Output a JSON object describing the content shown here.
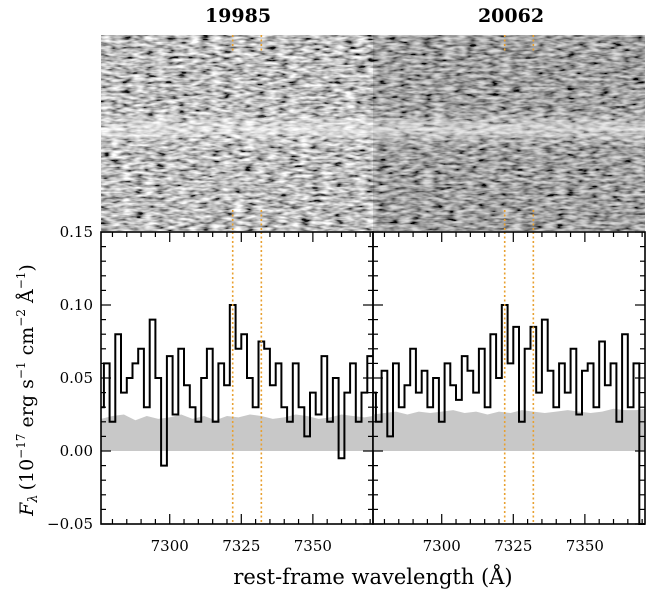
{
  "chart_data": [
    {
      "type": "line",
      "title": "19985",
      "xlabel": "rest-frame wavelength (Å)",
      "ylabel": "F_λ (10^-17 erg s^-1 cm^-2 Å^-1)",
      "ylabel_parts": {
        "f": "F",
        "lam": "λ",
        "open": "(10",
        "e1": "−17",
        "erg": " erg s",
        "e2": "−1",
        "cm": " cm",
        "e3": "−2",
        "ang": " Å",
        "e4": "−1",
        "close": ")"
      },
      "xlim": [
        7276,
        7371
      ],
      "ylim": [
        -0.05,
        0.15
      ],
      "xticks": [
        7300,
        7325,
        7350
      ],
      "yticks": [
        -0.05,
        0.0,
        0.05,
        0.1,
        0.15
      ],
      "ytick_labels": [
        "−0.05",
        "0.00",
        "0.05",
        "0.10",
        "0.15"
      ],
      "line_markers": [
        7322,
        7332
      ],
      "marker_color": "#e8a030",
      "error_color": "#c8c8c8",
      "series": [
        {
          "kind": "flux-step",
          "x": [
            7276,
            7278,
            7280,
            7282,
            7284,
            7286,
            7288,
            7290,
            7292,
            7294,
            7296,
            7298,
            7300,
            7302,
            7304,
            7306,
            7308,
            7310,
            7312,
            7314,
            7316,
            7318,
            7320,
            7322,
            7324,
            7326,
            7328,
            7330,
            7332,
            7334,
            7336,
            7338,
            7340,
            7342,
            7344,
            7346,
            7348,
            7350,
            7352,
            7354,
            7356,
            7358,
            7360,
            7362,
            7364,
            7366,
            7368,
            7370
          ],
          "y": [
            0.03,
            0.06,
            0.02,
            0.08,
            0.04,
            0.05,
            0.06,
            0.07,
            0.03,
            0.09,
            0.05,
            -0.01,
            0.065,
            0.025,
            0.07,
            0.045,
            0.03,
            0.02,
            0.05,
            0.07,
            0.02,
            0.06,
            0.045,
            0.1,
            0.07,
            0.08,
            0.05,
            0.03,
            0.075,
            0.07,
            0.045,
            0.06,
            0.03,
            0.02,
            0.06,
            0.03,
            0.01,
            0.04,
            0.025,
            0.065,
            0.02,
            0.05,
            -0.005,
            0.04,
            0.06,
            0.02,
            0.04,
            0.065
          ]
        },
        {
          "kind": "error-band",
          "x": [
            7276,
            7280,
            7284,
            7288,
            7292,
            7296,
            7300,
            7304,
            7308,
            7312,
            7316,
            7320,
            7324,
            7328,
            7332,
            7336,
            7340,
            7344,
            7348,
            7352,
            7356,
            7360,
            7364,
            7368,
            7371
          ],
          "y": [
            0.022,
            0.024,
            0.025,
            0.021,
            0.024,
            0.022,
            0.023,
            0.025,
            0.022,
            0.024,
            0.021,
            0.024,
            0.023,
            0.025,
            0.024,
            0.022,
            0.023,
            0.025,
            0.024,
            0.022,
            0.023,
            0.025,
            0.024,
            0.023,
            0.024
          ]
        }
      ]
    },
    {
      "type": "line",
      "title": "20062",
      "xlim": [
        7276,
        7371
      ],
      "ylim": [
        -0.05,
        0.15
      ],
      "xticks": [
        7300,
        7325,
        7350
      ],
      "line_markers": [
        7322,
        7332
      ],
      "series": [
        {
          "kind": "flux-step",
          "x": [
            7276,
            7278,
            7280,
            7282,
            7284,
            7286,
            7288,
            7290,
            7292,
            7294,
            7296,
            7298,
            7300,
            7302,
            7304,
            7306,
            7308,
            7310,
            7312,
            7314,
            7316,
            7318,
            7320,
            7322,
            7324,
            7326,
            7328,
            7330,
            7332,
            7334,
            7336,
            7338,
            7340,
            7342,
            7344,
            7346,
            7348,
            7350,
            7352,
            7354,
            7356,
            7358,
            7360,
            7362,
            7364,
            7366,
            7368,
            7370
          ],
          "y": [
            0.04,
            0.02,
            0.055,
            0.01,
            0.06,
            0.03,
            0.045,
            0.07,
            0.04,
            0.055,
            0.03,
            0.05,
            0.02,
            0.06,
            0.045,
            0.035,
            0.065,
            0.055,
            0.04,
            0.07,
            0.03,
            0.08,
            0.05,
            0.1,
            0.06,
            0.085,
            0.02,
            0.07,
            0.085,
            0.04,
            0.09,
            0.055,
            0.03,
            0.06,
            0.04,
            0.07,
            0.025,
            0.055,
            0.06,
            0.03,
            0.075,
            0.045,
            0.06,
            0.02,
            0.08,
            0.03,
            0.06,
            -0.05
          ]
        },
        {
          "kind": "error-band",
          "x": [
            7276,
            7280,
            7284,
            7288,
            7292,
            7296,
            7300,
            7304,
            7308,
            7312,
            7316,
            7320,
            7324,
            7328,
            7332,
            7336,
            7340,
            7344,
            7348,
            7352,
            7356,
            7360,
            7364,
            7368,
            7371
          ],
          "y": [
            0.025,
            0.026,
            0.027,
            0.025,
            0.027,
            0.026,
            0.027,
            0.028,
            0.026,
            0.027,
            0.025,
            0.027,
            0.026,
            0.028,
            0.027,
            0.026,
            0.027,
            0.028,
            0.027,
            0.026,
            0.027,
            0.029,
            0.028,
            0.028,
            0.029
          ]
        }
      ]
    }
  ]
}
